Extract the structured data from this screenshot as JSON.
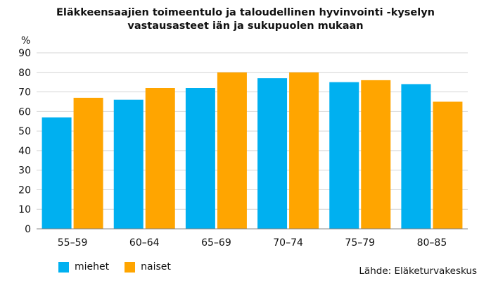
{
  "chart_data": {
    "type": "bar",
    "title_lines": [
      "Eläkkeensaajien toimeentulo ja taloudellinen hyvinvointi -kyselyn",
      "vastausasteet iän ja sukupuolen mukaan"
    ],
    "ylabel": "%",
    "xlabel": "",
    "ylim": [
      0,
      90
    ],
    "yticks": [
      0,
      10,
      20,
      30,
      40,
      50,
      60,
      70,
      80,
      90
    ],
    "grid": true,
    "legend_position": "bottom-left",
    "categories": [
      "55–59",
      "60–64",
      "65–69",
      "70–74",
      "75–79",
      "80–85"
    ],
    "series": [
      {
        "name": "miehet",
        "color": "#00b0f0",
        "values": [
          57,
          66,
          72,
          77,
          75,
          74
        ]
      },
      {
        "name": "naiset",
        "color": "#ffa500",
        "values": [
          67,
          72,
          80,
          80,
          76,
          65
        ]
      }
    ],
    "source": "Lähde: Eläketurvakeskus"
  }
}
